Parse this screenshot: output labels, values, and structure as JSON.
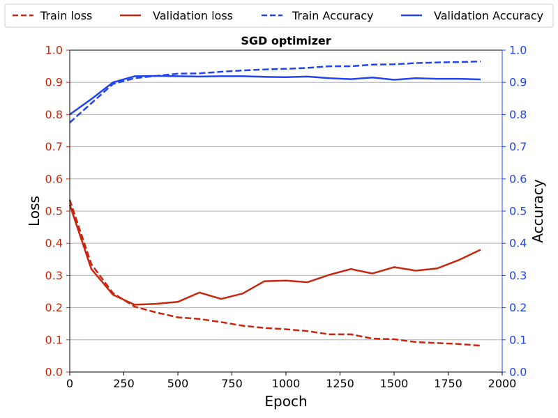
{
  "chart_data": {
    "type": "line",
    "title": "SGD optimizer",
    "xlabel": "Epoch",
    "ylabel_left": "Loss",
    "ylabel_right": "Accuracy",
    "xlim": [
      0,
      2000
    ],
    "ylim_left": [
      0,
      1
    ],
    "ylim_right": [
      0,
      1
    ],
    "x_ticks": [
      "0",
      "250",
      "500",
      "750",
      "1000",
      "1250",
      "1500",
      "1750",
      "2000"
    ],
    "y_ticks": [
      "0.0",
      "0.1",
      "0.2",
      "0.3",
      "0.4",
      "0.5",
      "0.6",
      "0.7",
      "0.8",
      "0.9",
      "1.0"
    ],
    "grid": "horizontal",
    "legend_position": "top",
    "x": [
      0,
      100,
      200,
      300,
      400,
      500,
      600,
      700,
      800,
      900,
      1000,
      1100,
      1200,
      1300,
      1400,
      1500,
      1600,
      1700,
      1800,
      1900
    ],
    "series": [
      {
        "name": "Train loss",
        "axis": "left",
        "color": "#c8260e",
        "style": "dashed",
        "values": [
          0.535,
          0.335,
          0.245,
          0.203,
          0.185,
          0.17,
          0.165,
          0.155,
          0.144,
          0.137,
          0.133,
          0.127,
          0.117,
          0.117,
          0.104,
          0.102,
          0.093,
          0.09,
          0.087,
          0.082
        ]
      },
      {
        "name": "Validation loss",
        "axis": "left",
        "color": "#c8260e",
        "style": "solid",
        "values": [
          0.52,
          0.32,
          0.24,
          0.209,
          0.212,
          0.218,
          0.247,
          0.227,
          0.244,
          0.282,
          0.284,
          0.279,
          0.302,
          0.32,
          0.306,
          0.326,
          0.315,
          0.322,
          0.348,
          0.38
        ]
      },
      {
        "name": "Train Accuracy",
        "axis": "right",
        "color": "#2244ee",
        "style": "dashed",
        "values": [
          0.775,
          0.835,
          0.895,
          0.913,
          0.92,
          0.927,
          0.928,
          0.933,
          0.937,
          0.94,
          0.942,
          0.945,
          0.95,
          0.95,
          0.955,
          0.956,
          0.96,
          0.962,
          0.963,
          0.965
        ]
      },
      {
        "name": "Validation Accuracy",
        "axis": "right",
        "color": "#2244ee",
        "style": "solid",
        "values": [
          0.8,
          0.848,
          0.9,
          0.919,
          0.92,
          0.919,
          0.918,
          0.919,
          0.919,
          0.917,
          0.916,
          0.918,
          0.913,
          0.91,
          0.915,
          0.908,
          0.913,
          0.911,
          0.911,
          0.909
        ]
      }
    ]
  }
}
